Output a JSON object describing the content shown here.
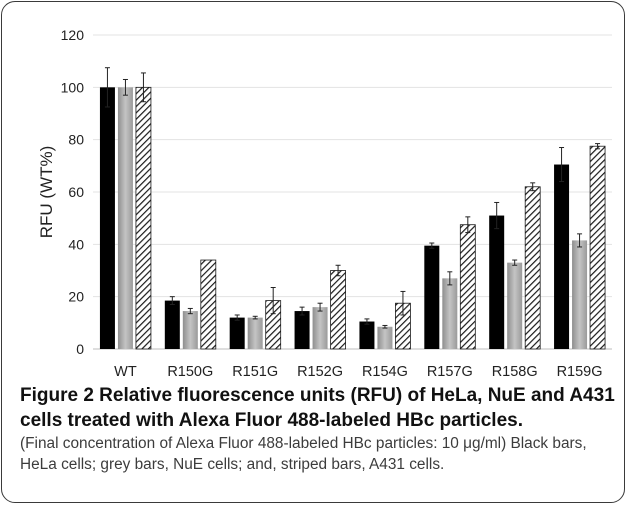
{
  "chart_data": {
    "type": "bar",
    "title": "",
    "xlabel": "",
    "ylabel": "RFU (WT%)",
    "ylim": [
      0,
      120
    ],
    "yticks": [
      0,
      20,
      40,
      60,
      80,
      100,
      120
    ],
    "grid": true,
    "legend": "none",
    "categories": [
      "WT",
      "R150G",
      "R151G",
      "R152G",
      "R154G",
      "R157G",
      "R158G",
      "R159G"
    ],
    "series": [
      {
        "key": "hela",
        "color": "#000000",
        "pattern": "solid",
        "values": [
          100,
          18.5,
          12,
          14.5,
          10.5,
          39.5,
          51,
          70.5
        ],
        "errors": [
          7.5,
          1.5,
          1,
          1.5,
          1,
          1,
          5,
          6.5
        ]
      },
      {
        "key": "nue",
        "color": "#a6a6a6",
        "pattern": "gradient-grey",
        "values": [
          100,
          14.5,
          12,
          16,
          8.5,
          27,
          33,
          41.5
        ],
        "errors": [
          3,
          1,
          0.5,
          1.5,
          0.5,
          2.5,
          1,
          2.5
        ]
      },
      {
        "key": "a431",
        "color": "#ffffff",
        "pattern": "diagonal-stripes",
        "values": [
          100,
          34,
          18.5,
          30,
          17.5,
          47.5,
          62,
          77.5
        ],
        "errors": [
          5.5,
          0,
          5,
          2,
          4.5,
          3,
          1.5,
          1
        ]
      }
    ]
  },
  "caption": {
    "title": "Figure 2 Relative fluorescence units (RFU) of HeLa, NuE and A431 cells treated with Alexa Fluor 488-labeled HBc particles.",
    "body": "(Final concentration of Alexa Fluor 488-labeled HBc particles: 10 μg/ml) Black bars, HeLa cells; grey bars, NuE cells; and, striped bars, A431 cells."
  }
}
